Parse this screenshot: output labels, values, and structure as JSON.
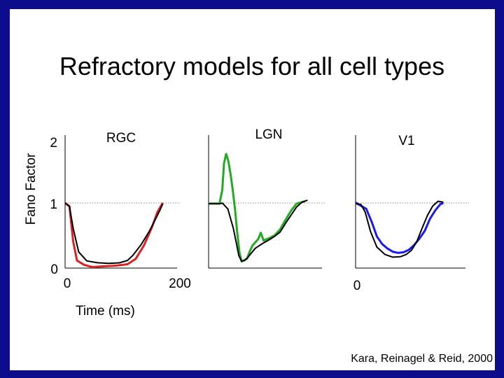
{
  "slide": {
    "title": "Refractory models for all cell types",
    "citation": "Kara, Reinagel & Reid, 2000"
  },
  "colors": {
    "frame": "#0c0c8c",
    "rgc_model": "#dd2222",
    "lgn_model": "#22aa22",
    "v1_model": "#1a1af0",
    "data": "#000000",
    "reference_line": "#888888"
  },
  "chart_data": {
    "type": "line",
    "ylabel": "Fano Factor",
    "xlabel": "Time  (ms)",
    "y_ticks": [
      "0",
      "1",
      "2"
    ],
    "ylim": [
      0,
      2.1
    ],
    "reference_line_y": 1,
    "panels": [
      {
        "name": "RGC",
        "x_ticks": [
          {
            "value": 0,
            "label": "0"
          },
          {
            "value": 200,
            "label": "200"
          }
        ],
        "xlim": [
          0,
          200
        ],
        "series": [
          {
            "role": "data",
            "color": "#000000",
            "x": [
              0,
              8,
              15,
              25,
              40,
              60,
              80,
              100,
              115,
              125,
              140,
              155,
              165,
              175,
              180
            ],
            "y": [
              1.0,
              0.96,
              0.62,
              0.25,
              0.1,
              0.07,
              0.07,
              0.09,
              0.13,
              0.2,
              0.35,
              0.55,
              0.72,
              0.9,
              1.0
            ]
          },
          {
            "role": "model",
            "color": "#dd2222",
            "x": [
              0,
              8,
              15,
              22,
              35,
              50,
              70,
              95,
              115,
              130,
              145,
              160,
              170,
              180
            ],
            "y": [
              1.0,
              0.94,
              0.4,
              0.12,
              0.06,
              0.02,
              0.02,
              0.03,
              0.06,
              0.15,
              0.35,
              0.62,
              0.85,
              1.0
            ]
          }
        ]
      },
      {
        "name": "LGN",
        "x_ticks": [],
        "xlim": [
          0,
          200
        ],
        "series": [
          {
            "role": "data",
            "color": "#000000",
            "x": [
              0,
              20,
              25,
              35,
              45,
              50,
              55,
              60,
              65,
              70,
              75,
              85,
              90,
              100,
              110,
              120,
              130,
              140,
              150,
              160,
              170,
              180
            ],
            "y": [
              1.0,
              1.0,
              1.0,
              0.9,
              0.6,
              0.4,
              0.2,
              0.12,
              0.12,
              0.14,
              0.19,
              0.3,
              0.34,
              0.4,
              0.44,
              0.48,
              0.54,
              0.68,
              0.82,
              0.95,
              1.02,
              1.04
            ]
          },
          {
            "role": "model",
            "color": "#22aa22",
            "x": [
              0,
              20,
              25,
              28,
              32,
              36,
              40,
              44,
              48,
              52,
              56,
              60,
              64,
              70,
              75,
              80,
              90,
              95,
              100,
              110,
              120,
              130,
              140,
              150,
              160,
              175
            ],
            "y": [
              1.0,
              1.0,
              1.2,
              1.6,
              1.75,
              1.65,
              1.45,
              1.2,
              0.9,
              0.55,
              0.25,
              0.11,
              0.12,
              0.14,
              0.25,
              0.35,
              0.45,
              0.55,
              0.42,
              0.45,
              0.5,
              0.6,
              0.75,
              0.88,
              0.98,
              1.02
            ]
          }
        ]
      },
      {
        "name": "V1",
        "x_ticks": [
          {
            "value": 0,
            "label": "0"
          }
        ],
        "xlim": [
          0,
          200
        ],
        "series": [
          {
            "role": "data",
            "color": "#000000",
            "x": [
              0,
              10,
              18,
              28,
              40,
              55,
              70,
              85,
              95,
              105,
              115,
              125,
              135,
              145,
              155,
              165
            ],
            "y": [
              1.0,
              0.98,
              0.85,
              0.55,
              0.32,
              0.22,
              0.18,
              0.18,
              0.2,
              0.26,
              0.4,
              0.62,
              0.82,
              0.96,
              1.02,
              1.0
            ]
          },
          {
            "role": "model",
            "color": "#1a1af0",
            "x": [
              0,
              10,
              20,
              30,
              40,
              50,
              60,
              70,
              80,
              90,
              100,
              110,
              120,
              130,
              140,
              150,
              160,
              165
            ],
            "y": [
              1.0,
              0.96,
              0.92,
              0.72,
              0.48,
              0.36,
              0.3,
              0.26,
              0.24,
              0.24,
              0.27,
              0.35,
              0.46,
              0.58,
              0.76,
              0.88,
              0.98,
              1.0
            ]
          }
        ]
      }
    ]
  }
}
